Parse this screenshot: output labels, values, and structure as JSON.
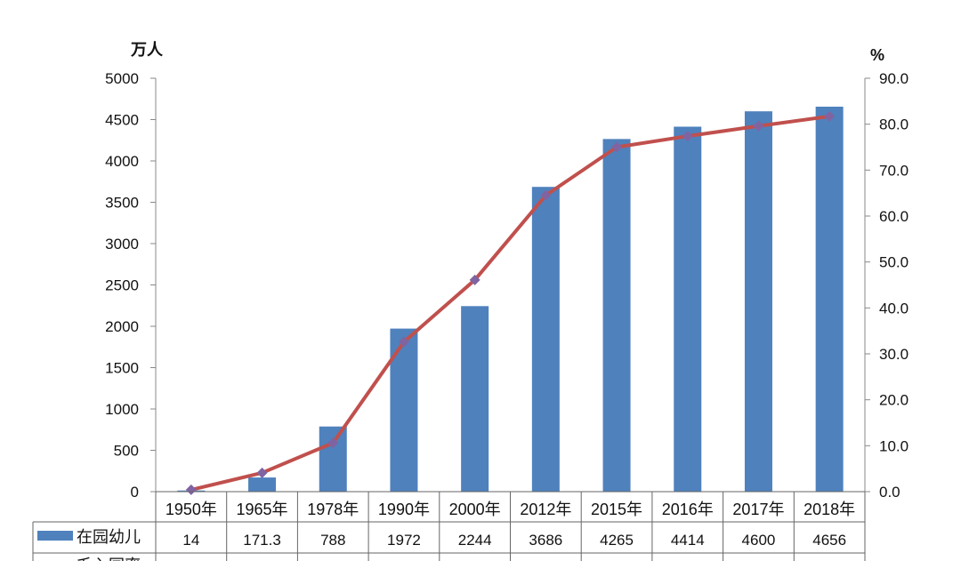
{
  "chart_data": {
    "type": "bar",
    "categories": [
      "1950年",
      "1965年",
      "1978年",
      "1990年",
      "2000年",
      "2012年",
      "2015年",
      "2016年",
      "2017年",
      "2018年"
    ],
    "series": [
      {
        "name": "在园幼儿",
        "type": "bar",
        "axis": "left",
        "color": "#4F81BD",
        "values": [
          14,
          171.3,
          788,
          1972,
          2244,
          3686,
          4265,
          4414,
          4600,
          4656
        ]
      },
      {
        "name": "毛入园率",
        "type": "line",
        "axis": "right",
        "color": "#C0504D",
        "marker_color": "#8064A2",
        "values": [
          0.4,
          4.1,
          10.6,
          32.6,
          46.1,
          64.5,
          75.0,
          77.4,
          79.6,
          81.7
        ]
      }
    ],
    "yaxis_left": {
      "unit_label": "万人",
      "ylim": [
        0,
        5000
      ],
      "ticks": [
        "0",
        "500",
        "1000",
        "1500",
        "2000",
        "2500",
        "3000",
        "3500",
        "4000",
        "4500",
        "5000"
      ]
    },
    "yaxis_right": {
      "unit_label": "%",
      "ylim": [
        0,
        90
      ],
      "ticks": [
        "0.0",
        "10.0",
        "20.0",
        "30.0",
        "40.0",
        "50.0",
        "60.0",
        "70.0",
        "80.0",
        "90.0"
      ]
    },
    "data_table": {
      "row_labels": [
        "在园幼儿",
        "毛入园率"
      ],
      "bar_row_values": [
        "14",
        "171.3",
        "788",
        "1972",
        "2244",
        "3686",
        "4265",
        "4414",
        "4600",
        "4656"
      ]
    },
    "grid": false,
    "legend": "data-table"
  }
}
